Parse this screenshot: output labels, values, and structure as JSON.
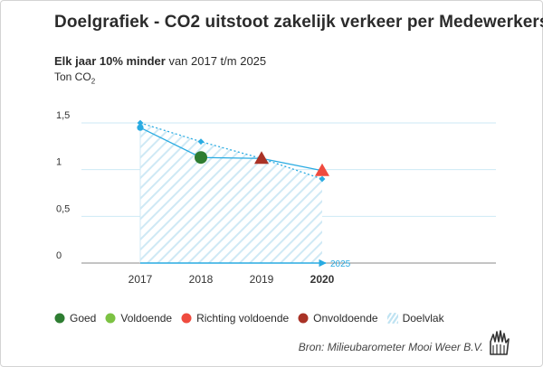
{
  "title": "Doelgrafiek - CO2 uitstoot zakelijk verkeer per Medewerkers",
  "subtitle_bold": "Elk jaar 10% minder",
  "subtitle_rest": " van 2017 t/m 2025",
  "unit_main": "Ton CO",
  "unit_sub": "2",
  "source": "Bron: Milieubarometer Mooi Weer B.V.",
  "colors": {
    "goed": "#2e7d32",
    "voldoende": "#7cc243",
    "richting_voldoende": "#ef4b3f",
    "onvoldoende": "#a93226",
    "doel": "#29abe2",
    "doelvlak": "#bfe3f2",
    "grid": "#cde9f5",
    "axis": "#888888"
  },
  "legend": [
    {
      "label": "Goed",
      "shape": "circle",
      "color": "#2e7d32"
    },
    {
      "label": "Voldoende",
      "shape": "circle",
      "color": "#7cc243"
    },
    {
      "label": "Richting voldoende",
      "shape": "circle",
      "color": "#ef4b3f"
    },
    {
      "label": "Onvoldoende",
      "shape": "circle",
      "color": "#a93226"
    },
    {
      "label": "Doelvlak",
      "shape": "hatch",
      "color": "#bfe3f2"
    }
  ],
  "chart_data": {
    "type": "line",
    "title": "Doelgrafiek - CO2 uitstoot zakelijk verkeer per Medewerkers",
    "ylabel": "Ton CO2",
    "ylim": [
      0,
      1.5
    ],
    "yticks": [
      {
        "value": 0,
        "label": "0"
      },
      {
        "value": 0.5,
        "label": "0,5"
      },
      {
        "value": 1,
        "label": "1"
      },
      {
        "value": 1.5,
        "label": "1,5"
      }
    ],
    "categories": [
      "2017",
      "2018",
      "2019",
      "2020"
    ],
    "current_category": "2020",
    "target_end_label": "2025",
    "grid": true,
    "series": [
      {
        "name": "Actueel",
        "values": [
          1.45,
          1.13,
          1.12,
          0.99
        ],
        "markers": [
          "point",
          "circle",
          "triangle",
          "triangle"
        ],
        "marker_colors": [
          "#29abe2",
          "#2e7d32",
          "#a93226",
          "#ef4b3f"
        ]
      },
      {
        "name": "Doel",
        "values": [
          1.5,
          1.3,
          1.12,
          0.9
        ],
        "style": "dotted"
      }
    ]
  }
}
